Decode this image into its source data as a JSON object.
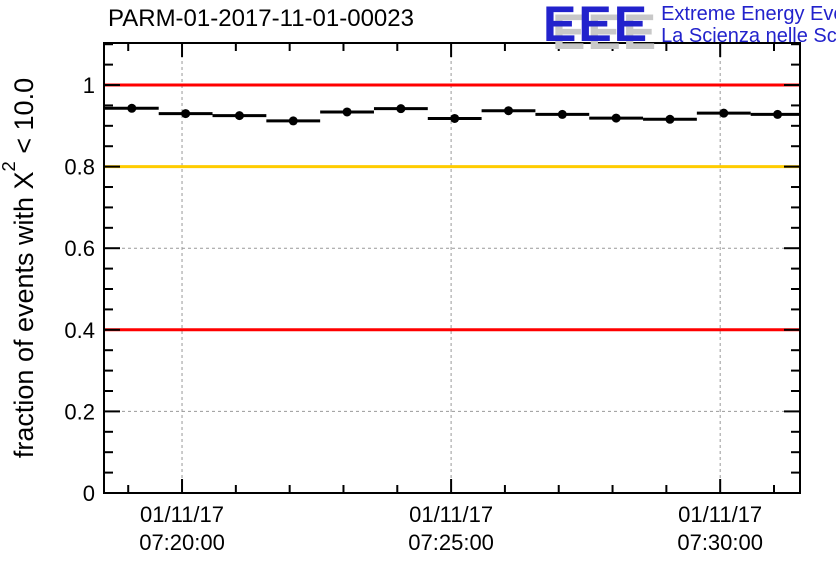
{
  "header": {
    "title": "PARM-01-2017-11-01-00023",
    "logo": {
      "acronym": "EEE",
      "tagline_line1": "Extreme Energy Events",
      "tagline_line2": "La Scienza nelle Scuole",
      "blue": "#2222cc",
      "shadow_gray": "#c8c8c8"
    }
  },
  "chart_data": {
    "type": "scatter",
    "title": "PARM-01-2017-11-01-00023",
    "ylabel": {
      "prefix": "fraction of events with X",
      "sup": "2",
      "suffix": " < 10.0"
    },
    "ylim": [
      0,
      1.103
    ],
    "y_major_ticks": [
      {
        "value": 0,
        "label": "0"
      },
      {
        "value": 0.2,
        "label": "0.2"
      },
      {
        "value": 0.4,
        "label": "0.4"
      },
      {
        "value": 0.6,
        "label": "0.6"
      },
      {
        "value": 0.8,
        "label": "0.8"
      },
      {
        "value": 1,
        "label": "1"
      }
    ],
    "y_minor_step": 0.05,
    "x_domain": [
      "07:18:33",
      "07:31:29"
    ],
    "x_major_ticks": [
      {
        "time": "07:20:00",
        "label_line1": "01/11/17",
        "label_line2": "07:20:00"
      },
      {
        "time": "07:25:00",
        "label_line1": "01/11/17",
        "label_line2": "07:25:00"
      },
      {
        "time": "07:30:00",
        "label_line1": "01/11/17",
        "label_line2": "07:30:00"
      }
    ],
    "x_minor_step_s": 60,
    "grid": {
      "show": true,
      "color": "#999999",
      "dash": "3 3"
    },
    "frame_color": "#000000",
    "thresholds": [
      {
        "value": 1.0,
        "color": "#ff0000"
      },
      {
        "value": 0.8,
        "color": "#ffcc00"
      },
      {
        "value": 0.4,
        "color": "#ff0000"
      }
    ],
    "series": [
      {
        "name": "fraction of events with chi2 < 10.0",
        "marker_color": "#000000",
        "bin_halfwidth_s": 30,
        "points": [
          {
            "time": "07:19:04",
            "value": 0.943
          },
          {
            "time": "07:20:04",
            "value": 0.93
          },
          {
            "time": "07:21:04",
            "value": 0.925
          },
          {
            "time": "07:22:04",
            "value": 0.912
          },
          {
            "time": "07:23:04",
            "value": 0.934
          },
          {
            "time": "07:24:04",
            "value": 0.942
          },
          {
            "time": "07:25:04",
            "value": 0.918
          },
          {
            "time": "07:26:04",
            "value": 0.937
          },
          {
            "time": "07:27:04",
            "value": 0.928
          },
          {
            "time": "07:28:04",
            "value": 0.919
          },
          {
            "time": "07:29:04",
            "value": 0.916
          },
          {
            "time": "07:30:04",
            "value": 0.931
          },
          {
            "time": "07:31:04",
            "value": 0.928
          }
        ]
      }
    ]
  }
}
